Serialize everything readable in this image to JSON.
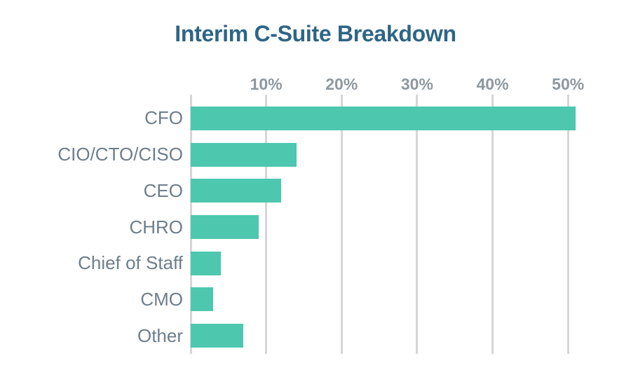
{
  "title": "Interim C-Suite Breakdown",
  "chart_data": {
    "type": "bar",
    "orientation": "horizontal",
    "title": "Interim C-Suite Breakdown",
    "categories": [
      "CFO",
      "CIO/CTO/CISO",
      "CEO",
      "CHRO",
      "Chief of Staff",
      "CMO",
      "Other"
    ],
    "values": [
      51,
      14,
      12,
      9,
      4,
      3,
      7
    ],
    "value_unit": "%",
    "x_ticks": [
      {
        "label": "10%",
        "value": 10
      },
      {
        "label": "20%",
        "value": 20
      },
      {
        "label": "30%",
        "value": 30
      },
      {
        "label": "40%",
        "value": 40
      },
      {
        "label": "50%",
        "value": 50
      }
    ],
    "xlim": [
      0,
      55
    ],
    "axis_labels_position": "top",
    "grid": true,
    "legend": false,
    "colors": {
      "bar": "#4dc8ae",
      "title": "#2e6586",
      "category_label": "#6d7e8d",
      "tick_label": "#8e989f",
      "gridline": "#d6d6d6",
      "background": "#ffffff"
    }
  }
}
